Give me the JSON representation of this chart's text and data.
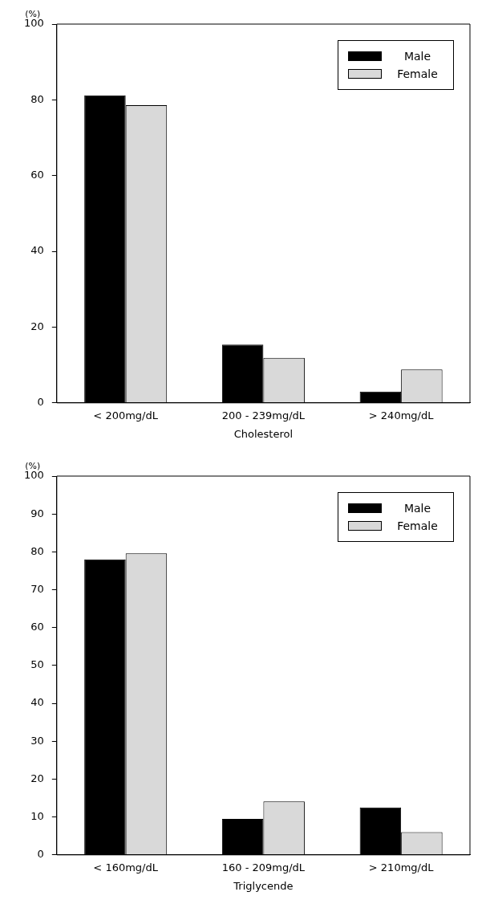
{
  "chart_data": [
    {
      "type": "bar",
      "xlabel": "Cholesterol",
      "ylabel": "(%)",
      "categories": [
        "< 200mg/dL",
        "200 - 239mg/dL",
        "> 240mg/dL"
      ],
      "series": [
        {
          "name": "Male",
          "color": "#000000",
          "values": [
            81.2,
            15.4,
            3.0
          ]
        },
        {
          "name": "Female",
          "color": "#d9d9d9",
          "values": [
            78.6,
            11.9,
            8.8
          ]
        }
      ],
      "ylim": [
        0,
        100
      ],
      "yticks": [
        0,
        20,
        40,
        60,
        80,
        100
      ],
      "grid": false,
      "legend": "top right"
    },
    {
      "type": "bar",
      "xlabel": "Triglycende",
      "ylabel": "(%)",
      "categories": [
        "< 160mg/dL",
        "160 - 209mg/dL",
        "> 210mg/dL"
      ],
      "series": [
        {
          "name": "Male",
          "color": "#000000",
          "values": [
            78.0,
            9.5,
            12.5
          ]
        },
        {
          "name": "Female",
          "color": "#d9d9d9",
          "values": [
            79.6,
            14.1,
            6.0
          ]
        }
      ],
      "ylim": [
        0,
        100
      ],
      "yticks": [
        0,
        10,
        20,
        30,
        40,
        50,
        60,
        70,
        80,
        90,
        100
      ],
      "grid": false,
      "legend": "top right"
    }
  ]
}
